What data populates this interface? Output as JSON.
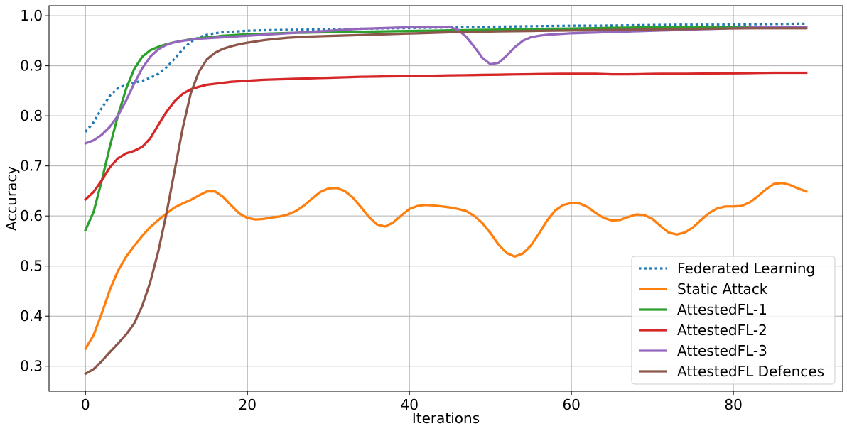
{
  "chart_data": {
    "type": "line",
    "title": "",
    "xlabel": "Iterations",
    "ylabel": "Accuracy",
    "xlim": [
      -4.5,
      93.5
    ],
    "ylim": [
      0.25,
      1.02
    ],
    "xticks": [
      0,
      20,
      40,
      60,
      80
    ],
    "yticks": [
      0.3,
      0.4,
      0.5,
      0.6,
      0.7,
      0.8,
      0.9,
      1.0
    ],
    "xtick_labels": [
      "0",
      "20",
      "40",
      "60",
      "80"
    ],
    "ytick_labels": [
      "0.3",
      "0.4",
      "0.5",
      "0.6",
      "0.7",
      "0.8",
      "0.9",
      "1.0"
    ],
    "grid": true,
    "legend_position": "lower-right",
    "x": [
      0,
      1,
      2,
      3,
      4,
      5,
      6,
      7,
      8,
      9,
      10,
      11,
      12,
      13,
      14,
      15,
      16,
      17,
      18,
      19,
      20,
      21,
      22,
      23,
      24,
      25,
      26,
      27,
      28,
      29,
      30,
      31,
      32,
      33,
      34,
      35,
      36,
      37,
      38,
      39,
      40,
      41,
      42,
      43,
      44,
      45,
      46,
      47,
      48,
      49,
      50,
      51,
      52,
      53,
      54,
      55,
      56,
      57,
      58,
      59,
      60,
      61,
      62,
      63,
      64,
      65,
      66,
      67,
      68,
      69,
      70,
      71,
      72,
      73,
      74,
      75,
      76,
      77,
      78,
      79,
      80,
      81,
      82,
      83,
      84,
      85,
      86,
      87,
      88,
      89
    ],
    "series": [
      {
        "name": "Federated Learning",
        "color": "#1f77b4",
        "dashed": true,
        "values": [
          0.768,
          0.787,
          0.815,
          0.84,
          0.855,
          0.862,
          0.866,
          0.87,
          0.876,
          0.884,
          0.897,
          0.914,
          0.933,
          0.948,
          0.957,
          0.962,
          0.965,
          0.967,
          0.968,
          0.969,
          0.97,
          0.9705,
          0.971,
          0.9712,
          0.9715,
          0.9718,
          0.972,
          0.9722,
          0.9725,
          0.9728,
          0.973,
          0.9732,
          0.9735,
          0.9738,
          0.974,
          0.9742,
          0.9745,
          0.9748,
          0.975,
          0.9752,
          0.9755,
          0.9758,
          0.976,
          0.9762,
          0.9765,
          0.9768,
          0.977,
          0.9772,
          0.9775,
          0.9778,
          0.978,
          0.9782,
          0.9784,
          0.9786,
          0.9788,
          0.979,
          0.9792,
          0.9794,
          0.9796,
          0.9798,
          0.98,
          0.98,
          0.98,
          0.98,
          0.9802,
          0.9804,
          0.9806,
          0.9808,
          0.981,
          0.9812,
          0.9814,
          0.9816,
          0.9818,
          0.982,
          0.982,
          0.982,
          0.982,
          0.982,
          0.982,
          0.9822,
          0.9824,
          0.9826,
          0.9828,
          0.983,
          0.9832,
          0.9834,
          0.9836,
          0.9838,
          0.984,
          0.984
        ]
      },
      {
        "name": "Static Attack",
        "color": "#ff7f0e",
        "dashed": false,
        "values": [
          0.335,
          0.362,
          0.405,
          0.452,
          0.49,
          0.518,
          0.54,
          0.56,
          0.578,
          0.592,
          0.605,
          0.617,
          0.625,
          0.632,
          0.641,
          0.649,
          0.649,
          0.638,
          0.621,
          0.605,
          0.596,
          0.593,
          0.594,
          0.597,
          0.599,
          0.603,
          0.61,
          0.621,
          0.635,
          0.648,
          0.655,
          0.656,
          0.65,
          0.637,
          0.618,
          0.598,
          0.583,
          0.579,
          0.587,
          0.601,
          0.614,
          0.62,
          0.622,
          0.621,
          0.619,
          0.617,
          0.614,
          0.61,
          0.6,
          0.586,
          0.566,
          0.543,
          0.526,
          0.519,
          0.525,
          0.541,
          0.565,
          0.591,
          0.611,
          0.622,
          0.626,
          0.625,
          0.618,
          0.606,
          0.596,
          0.591,
          0.592,
          0.598,
          0.603,
          0.602,
          0.594,
          0.58,
          0.567,
          0.563,
          0.567,
          0.577,
          0.592,
          0.606,
          0.615,
          0.619,
          0.619,
          0.62,
          0.627,
          0.639,
          0.653,
          0.664,
          0.666,
          0.662,
          0.655,
          0.649
        ]
      },
      {
        "name": "AttestedFL-1",
        "color": "#2ca02c",
        "dashed": false,
        "values": [
          0.572,
          0.608,
          0.67,
          0.738,
          0.8,
          0.853,
          0.893,
          0.918,
          0.931,
          0.938,
          0.943,
          0.947,
          0.95,
          0.953,
          0.955,
          0.957,
          0.958,
          0.96,
          0.961,
          0.962,
          0.963,
          0.9635,
          0.964,
          0.9645,
          0.965,
          0.9655,
          0.966,
          0.9662,
          0.9665,
          0.9668,
          0.967,
          0.9672,
          0.9675,
          0.9678,
          0.968,
          0.9682,
          0.9685,
          0.9688,
          0.969,
          0.9692,
          0.9695,
          0.9698,
          0.97,
          0.9702,
          0.9705,
          0.9708,
          0.971,
          0.9712,
          0.9715,
          0.9718,
          0.972,
          0.9722,
          0.9725,
          0.9728,
          0.973,
          0.9732,
          0.9735,
          0.9738,
          0.974,
          0.9742,
          0.9745,
          0.9748,
          0.975,
          0.9752,
          0.9755,
          0.9758,
          0.976,
          0.9762,
          0.9765,
          0.9768,
          0.977,
          0.9772,
          0.9774,
          0.9776,
          0.9778,
          0.978,
          0.978,
          0.978,
          0.978,
          0.978,
          0.978,
          0.978,
          0.978,
          0.978,
          0.978,
          0.978,
          0.978,
          0.978,
          0.978,
          0.978
        ]
      },
      {
        "name": "AttestedFL-2",
        "color": "#d62728",
        "dashed": false,
        "values": [
          0.633,
          0.648,
          0.671,
          0.697,
          0.715,
          0.725,
          0.73,
          0.738,
          0.755,
          0.782,
          0.808,
          0.829,
          0.844,
          0.853,
          0.858,
          0.862,
          0.864,
          0.866,
          0.868,
          0.869,
          0.87,
          0.871,
          0.872,
          0.8725,
          0.873,
          0.8735,
          0.874,
          0.8745,
          0.875,
          0.8755,
          0.876,
          0.8765,
          0.877,
          0.8775,
          0.878,
          0.8782,
          0.8785,
          0.8788,
          0.879,
          0.8792,
          0.8795,
          0.8798,
          0.88,
          0.8802,
          0.8805,
          0.8808,
          0.881,
          0.8812,
          0.8815,
          0.8818,
          0.882,
          0.8822,
          0.8825,
          0.8828,
          0.883,
          0.8832,
          0.8834,
          0.8836,
          0.8838,
          0.884,
          0.884,
          0.884,
          0.884,
          0.884,
          0.8835,
          0.883,
          0.883,
          0.883,
          0.8832,
          0.8835,
          0.8838,
          0.884,
          0.884,
          0.884,
          0.884,
          0.8842,
          0.8844,
          0.8846,
          0.8848,
          0.885,
          0.885,
          0.8852,
          0.8854,
          0.8856,
          0.8858,
          0.886,
          0.886,
          0.886,
          0.886,
          0.886
        ]
      },
      {
        "name": "AttestedFL-3",
        "color": "#9467bd",
        "dashed": false,
        "values": [
          0.745,
          0.751,
          0.762,
          0.778,
          0.8,
          0.83,
          0.864,
          0.895,
          0.918,
          0.933,
          0.942,
          0.947,
          0.95,
          0.952,
          0.954,
          0.955,
          0.956,
          0.957,
          0.958,
          0.959,
          0.96,
          0.961,
          0.962,
          0.963,
          0.964,
          0.965,
          0.966,
          0.967,
          0.968,
          0.969,
          0.97,
          0.971,
          0.972,
          0.973,
          0.974,
          0.9745,
          0.975,
          0.9755,
          0.976,
          0.9765,
          0.977,
          0.9775,
          0.978,
          0.978,
          0.978,
          0.977,
          0.972,
          0.958,
          0.938,
          0.916,
          0.903,
          0.906,
          0.92,
          0.937,
          0.95,
          0.957,
          0.96,
          0.962,
          0.963,
          0.964,
          0.965,
          0.9655,
          0.966,
          0.9665,
          0.967,
          0.9675,
          0.968,
          0.9685,
          0.969,
          0.9695,
          0.97,
          0.9705,
          0.971,
          0.9715,
          0.972,
          0.9725,
          0.973,
          0.9735,
          0.974,
          0.9745,
          0.975,
          0.9755,
          0.976,
          0.9765,
          0.977,
          0.9775,
          0.978,
          0.978,
          0.978,
          0.978
        ]
      },
      {
        "name": "AttestedFL Defences",
        "color": "#8c564b",
        "dashed": false,
        "values": [
          0.285,
          0.294,
          0.31,
          0.328,
          0.345,
          0.363,
          0.385,
          0.42,
          0.468,
          0.53,
          0.605,
          0.69,
          0.775,
          0.845,
          0.888,
          0.913,
          0.926,
          0.934,
          0.939,
          0.943,
          0.946,
          0.9485,
          0.951,
          0.953,
          0.9545,
          0.956,
          0.957,
          0.958,
          0.9585,
          0.959,
          0.9595,
          0.96,
          0.9605,
          0.961,
          0.9615,
          0.962,
          0.9625,
          0.963,
          0.9635,
          0.964,
          0.9645,
          0.965,
          0.9655,
          0.966,
          0.9665,
          0.967,
          0.9673,
          0.9676,
          0.9679,
          0.9682,
          0.9685,
          0.9688,
          0.969,
          0.9692,
          0.9694,
          0.9696,
          0.9698,
          0.97,
          0.9702,
          0.9704,
          0.9706,
          0.9708,
          0.971,
          0.9712,
          0.9714,
          0.9716,
          0.9718,
          0.972,
          0.9722,
          0.9724,
          0.9726,
          0.9728,
          0.973,
          0.9732,
          0.9734,
          0.9736,
          0.9738,
          0.974,
          0.9742,
          0.9744,
          0.9746,
          0.9748,
          0.975,
          0.975,
          0.975,
          0.975,
          0.975,
          0.975,
          0.975,
          0.975
        ]
      }
    ]
  }
}
